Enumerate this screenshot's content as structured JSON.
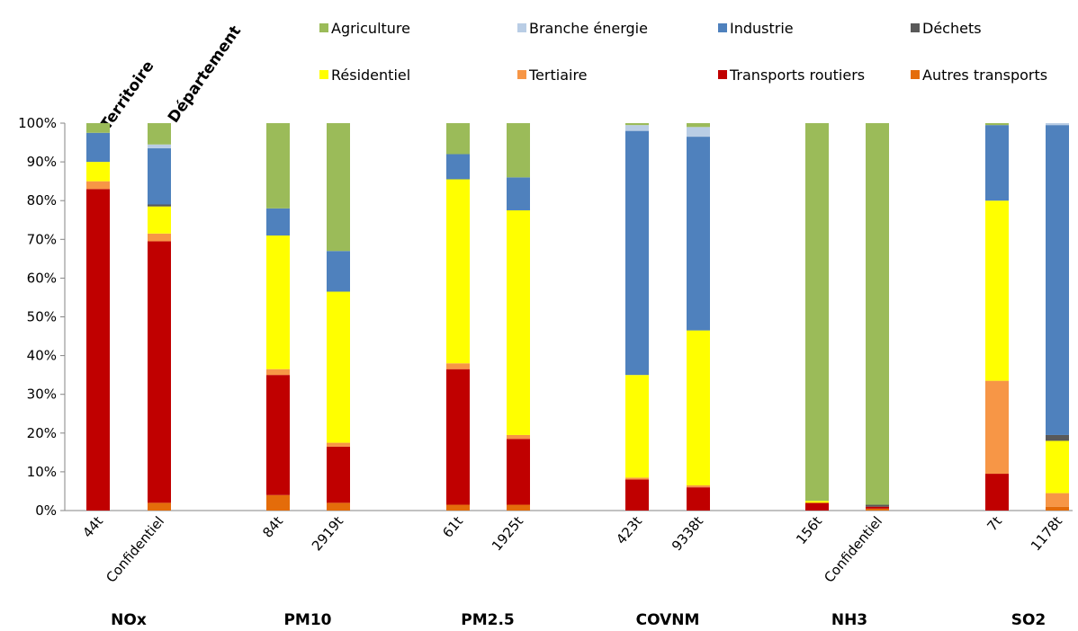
{
  "chart_data": {
    "type": "bar",
    "stacked": true,
    "normalized": true,
    "ylim": [
      0,
      100
    ],
    "yticks": [
      "0%",
      "10%",
      "20%",
      "30%",
      "40%",
      "50%",
      "60%",
      "70%",
      "80%",
      "90%",
      "100%"
    ],
    "column_series_labels": [
      "Territoire",
      "Département"
    ],
    "legend": [
      {
        "name": "Agriculture",
        "color": "#9bbb59"
      },
      {
        "name": "Branche énergie",
        "color": "#b9cde5"
      },
      {
        "name": "Industrie",
        "color": "#4f81bd"
      },
      {
        "name": "Déchets",
        "color": "#595959"
      },
      {
        "name": "Résidentiel",
        "color": "#ffff00"
      },
      {
        "name": "Tertiaire",
        "color": "#f79646"
      },
      {
        "name": "Transports routiers",
        "color": "#c00000"
      },
      {
        "name": "Autres transports",
        "color": "#e46c0a"
      }
    ],
    "stack_order": [
      "Autres transports",
      "Transports routiers",
      "Tertiaire",
      "Résidentiel",
      "Déchets",
      "Industrie",
      "Branche énergie",
      "Agriculture"
    ],
    "groups": [
      {
        "label": "NOx",
        "bars": [
          {
            "label": "44t",
            "values": [
              0,
              83,
              2,
              5,
              0,
              7.5,
              0,
              2.5
            ]
          },
          {
            "label": "Confidentiel",
            "values": [
              2,
              67.5,
              2,
              7,
              0.5,
              14.5,
              1,
              5.5
            ]
          }
        ]
      },
      {
        "label": "PM10",
        "bars": [
          {
            "label": "84t",
            "values": [
              4,
              31,
              1.5,
              34.5,
              0,
              7,
              0,
              22
            ]
          },
          {
            "label": "2919t",
            "values": [
              2,
              14.5,
              1,
              39,
              0,
              10.5,
              0,
              33
            ]
          }
        ]
      },
      {
        "label": "PM2.5",
        "bars": [
          {
            "label": "61t",
            "values": [
              1.5,
              35,
              1.5,
              47.5,
              0,
              6.5,
              0,
              8
            ]
          },
          {
            "label": "1925t",
            "values": [
              1.5,
              17,
              1,
              58,
              0,
              8.5,
              0,
              14
            ]
          }
        ]
      },
      {
        "label": "COVNM",
        "bars": [
          {
            "label": "423t",
            "values": [
              0,
              8,
              0.5,
              26.5,
              0,
              63,
              1.5,
              0.5
            ]
          },
          {
            "label": "9338t",
            "values": [
              0,
              6,
              0.5,
              40,
              0,
              50,
              2.5,
              1
            ]
          }
        ]
      },
      {
        "label": "NH3",
        "bars": [
          {
            "label": "156t",
            "values": [
              0,
              2,
              0,
              0.5,
              0,
              0,
              0,
              97.5
            ]
          },
          {
            "label": "Confidentiel",
            "values": [
              0.5,
              0.5,
              0,
              0,
              0.5,
              0,
              0,
              98.5
            ]
          }
        ]
      },
      {
        "label": "SO2",
        "bars": [
          {
            "label": "7t",
            "values": [
              0,
              9.5,
              24,
              46.5,
              0,
              19.5,
              0,
              0.5
            ]
          },
          {
            "label": "1178t",
            "values": [
              1,
              0,
              3.5,
              13.5,
              1.5,
              80,
              0.5,
              0
            ]
          }
        ]
      }
    ]
  }
}
